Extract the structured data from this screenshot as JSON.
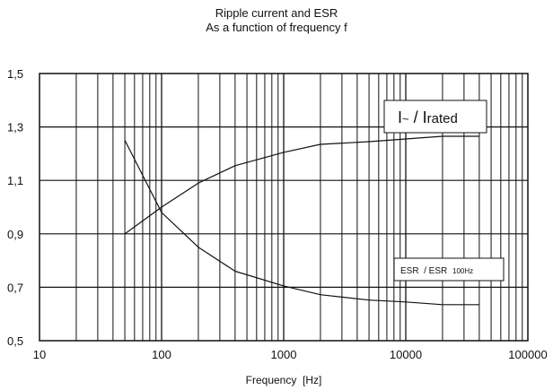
{
  "chart_data": {
    "type": "line",
    "title": "Ripple current and ESR",
    "subtitle": "As a function of frequency f",
    "xlabel": "Frequency  [Hz]",
    "ylabel": "",
    "x_scale": "log",
    "xlim": [
      10,
      100000
    ],
    "ylim": [
      0.5,
      1.5
    ],
    "grid": true,
    "x_ticks": [
      {
        "value": 10,
        "label": "10"
      },
      {
        "value": 100,
        "label": "100"
      },
      {
        "value": 1000,
        "label": "1000"
      },
      {
        "value": 10000,
        "label": "10000"
      },
      {
        "value": 100000,
        "label": "100000"
      }
    ],
    "y_ticks": [
      {
        "value": 0.5,
        "label": "0,5"
      },
      {
        "value": 0.7,
        "label": "0,7"
      },
      {
        "value": 0.9,
        "label": "0,9"
      },
      {
        "value": 1.1,
        "label": "1,1"
      },
      {
        "value": 1.3,
        "label": "1,3"
      },
      {
        "value": 1.5,
        "label": "1,5"
      }
    ],
    "series": [
      {
        "label_parts": [
          "I",
          "~",
          " / ",
          "I",
          "rated"
        ],
        "x": [
          50,
          100,
          200,
          400,
          1000,
          2000,
          5000,
          10000,
          20000,
          40000
        ],
        "y": [
          0.9,
          1.0,
          1.09,
          1.155,
          1.205,
          1.235,
          1.245,
          1.255,
          1.265,
          1.265
        ]
      },
      {
        "label_parts": [
          "ESR  / ESR ",
          "100Hz"
        ],
        "x": [
          50,
          100,
          200,
          400,
          1000,
          2000,
          5000,
          10000,
          20000,
          40000
        ],
        "y": [
          1.25,
          0.98,
          0.85,
          0.76,
          0.705,
          0.672,
          0.652,
          0.645,
          0.635,
          0.635
        ]
      }
    ]
  }
}
